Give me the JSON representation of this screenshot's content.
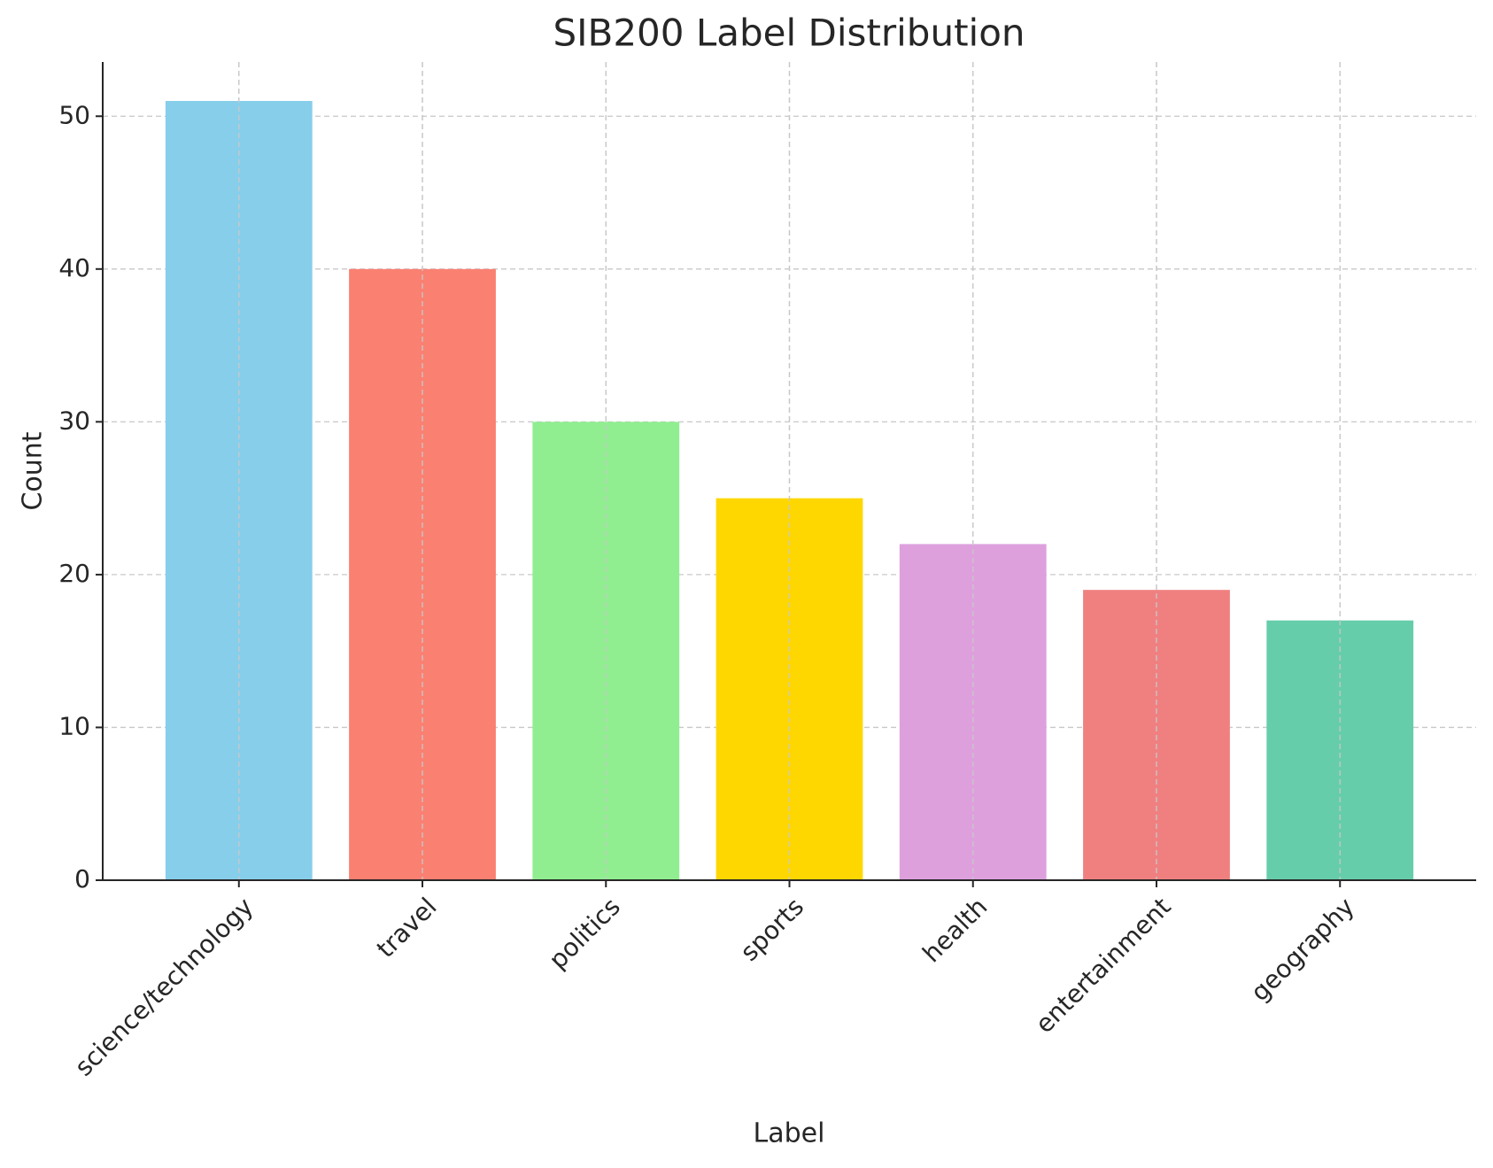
{
  "chart_data": {
    "type": "bar",
    "title": "SIB200 Label Distribution",
    "x_label": "Label",
    "y_label": "Count",
    "categories": [
      "science/technology",
      "travel",
      "politics",
      "sports",
      "health",
      "entertainment",
      "geography"
    ],
    "values": [
      51,
      40,
      30,
      25,
      22,
      19,
      17
    ],
    "colors": [
      "#87ceeb",
      "#fa8072",
      "#90ee90",
      "#ffd700",
      "#dda0dd",
      "#f08080",
      "#66cdaa"
    ],
    "ylim": [
      0,
      53.55
    ],
    "yticks": [
      0,
      10,
      20,
      30,
      40,
      50
    ],
    "grid": true
  }
}
